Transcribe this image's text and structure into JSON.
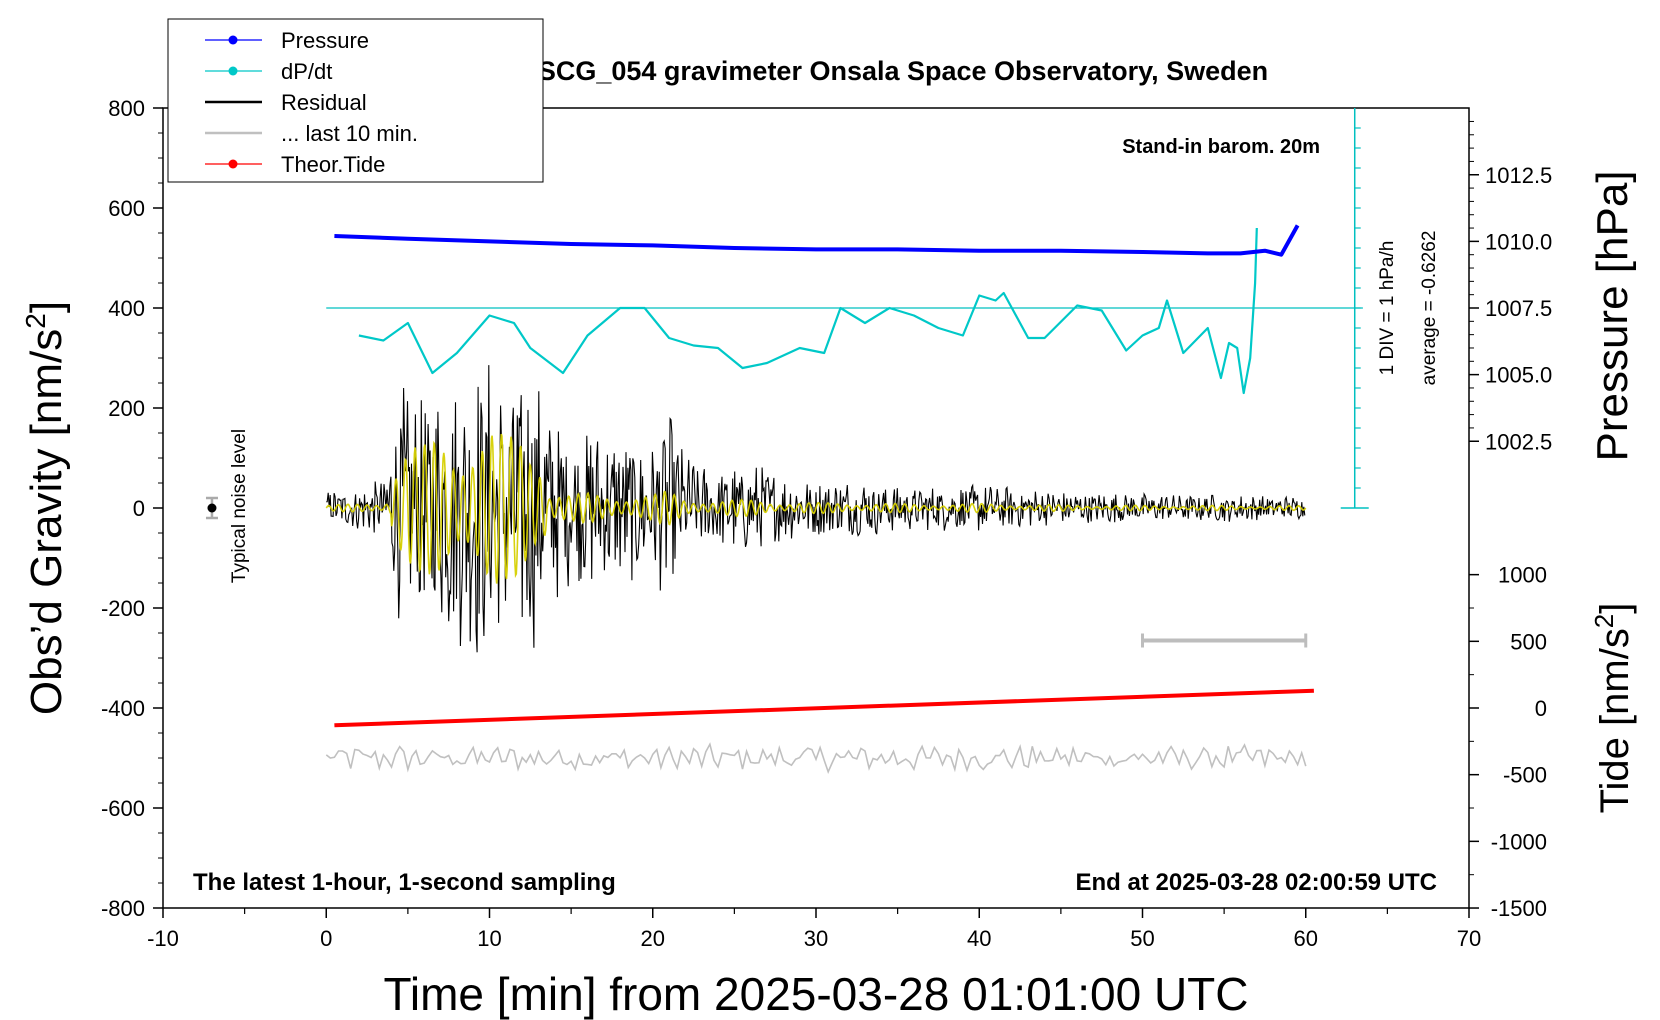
{
  "chart_data": {
    "type": "line",
    "title": "SCG_054 gravimeter Onsala Space Observatory, Sweden",
    "xlabel": "Time [min] from 2025-03-28 01:01:00 UTC",
    "ylabel_left": "Obs’d Gravity [nm/s",
    "ylabel_left_sup": "2",
    "ylabel_left_close": "]",
    "ylabel_pressure": "Pressure [hPa]",
    "ylabel_tide": "Tide [nm/s",
    "ylabel_tide_sup": "2",
    "ylabel_tide_close": "]",
    "xlim": [
      -10,
      70
    ],
    "ylim": [
      -800,
      800
    ],
    "xticks": [
      -10,
      0,
      10,
      20,
      30,
      40,
      50,
      60,
      70
    ],
    "xtick_labels": [
      "-10",
      "0",
      "10",
      "20",
      "30",
      "40",
      "50",
      "60",
      "70"
    ],
    "yticks": [
      -800,
      -600,
      -400,
      -200,
      0,
      200,
      400,
      600,
      800
    ],
    "ytick_labels": [
      "-800",
      "-600",
      "-400",
      "-200",
      "0",
      "200",
      "400",
      "600",
      "800"
    ],
    "pressure_axis": {
      "ticks": [
        1002.5,
        1005.0,
        1007.5,
        1010.0,
        1012.5
      ],
      "tick_labels": [
        "1002.5",
        "1005.0",
        "1007.5",
        "1010.0",
        "1012.5"
      ],
      "ref_value": 1007.5,
      "ref_gravity": 400,
      "gravity_per_hPa": 53.3
    },
    "tide_axis": {
      "ticks": [
        -1500,
        -1000,
        -500,
        0,
        500,
        1000
      ],
      "tick_labels": [
        "-1500",
        "-1000",
        "-500",
        "0",
        "500",
        "1000"
      ],
      "ref_value": 0,
      "ref_gravity": -400,
      "gravity_per_unit": 0.2667
    },
    "legend": {
      "placement": "top-left",
      "entries": [
        {
          "label": "Pressure",
          "color": "#0000ff",
          "marker": true
        },
        {
          "label": "dP/dt",
          "color": "#00c8c8",
          "marker": true
        },
        {
          "label": "Residual",
          "color": "#000000",
          "marker": false
        },
        {
          "label": "... last 10 min.",
          "color": "#c0c0c0",
          "marker": false
        },
        {
          "label": "Theor.Tide",
          "color": "#ff0000",
          "marker": true
        }
      ]
    },
    "annotations": {
      "barometer": "Stand-in barom. 20m",
      "bottom_left": "The latest 1-hour, 1-second sampling",
      "bottom_right": "End at 2025-03-28 02:00:59 UTC",
      "noise": "Typical noise level",
      "dpdt_div": "1 DIV = 1 hPa/h",
      "dpdt_avg": "average = -0.6262"
    },
    "noise_marker": {
      "x": -7,
      "y": 0,
      "err": 20
    },
    "last10_bar": {
      "x0": 50,
      "x1": 60,
      "y": -265
    },
    "dpdt_scale": {
      "x": 63,
      "y0": 0,
      "y1": 800,
      "div": 40
    },
    "dpdt_reference_level": 400,
    "series": [
      {
        "name": "Pressure",
        "color": "#0000ff",
        "x": [
          0.5,
          5,
          10,
          15,
          20,
          25,
          30,
          35,
          40,
          45,
          50,
          54,
          56,
          57.5,
          58.5,
          59.5
        ],
        "values": [
          1010.2,
          1010.1,
          1010.0,
          1009.9,
          1009.85,
          1009.75,
          1009.7,
          1009.7,
          1009.65,
          1009.65,
          1009.6,
          1009.55,
          1009.55,
          1009.65,
          1009.5,
          1010.6
        ]
      },
      {
        "name": "dP/dt",
        "color": "#00c8c8",
        "x": [
          2,
          3.5,
          5,
          6.5,
          8,
          10,
          11.5,
          12.5,
          14.5,
          16,
          18,
          19.5,
          21,
          22.5,
          24,
          25.5,
          27,
          29,
          30.5,
          31.5,
          33,
          34.5,
          36,
          37.5,
          39,
          40,
          41,
          41.5,
          43,
          44,
          46,
          47.5,
          49,
          50,
          51,
          51.5,
          52.5,
          54,
          54.8,
          55.3,
          55.8,
          56.2,
          56.6,
          56.9,
          57.0
        ],
        "values": [
          345,
          335,
          370,
          270,
          310,
          385,
          370,
          320,
          270,
          345,
          400,
          400,
          340,
          325,
          320,
          280,
          290,
          320,
          310,
          400,
          370,
          400,
          385,
          360,
          345,
          425,
          415,
          430,
          340,
          340,
          405,
          395,
          315,
          345,
          360,
          415,
          310,
          360,
          260,
          330,
          320,
          230,
          300,
          450,
          560
        ]
      },
      {
        "name": "Residual",
        "color": "#000000",
        "x": [
          0,
          2,
          3.5,
          4.5,
          6,
          7,
          8,
          9,
          10,
          11,
          12,
          13,
          14,
          15,
          16,
          18,
          20,
          21,
          22,
          24,
          26,
          28,
          30,
          33,
          36,
          40,
          45,
          50,
          55,
          60
        ],
        "values": [
          35,
          45,
          60,
          260,
          230,
          280,
          275,
          320,
          310,
          260,
          300,
          280,
          200,
          150,
          170,
          160,
          150,
          200,
          110,
          90,
          95,
          70,
          60,
          60,
          45,
          50,
          35,
          30,
          28,
          25
        ]
      },
      {
        "name": "... last 10 min.",
        "color": "#c0c0c0",
        "x": [
          0,
          60
        ],
        "values": [
          -500,
          -500
        ]
      },
      {
        "name": "Theor.Tide",
        "color": "#ff0000",
        "x": [
          0.5,
          60.5
        ],
        "values": [
          -130,
          130
        ]
      }
    ]
  }
}
